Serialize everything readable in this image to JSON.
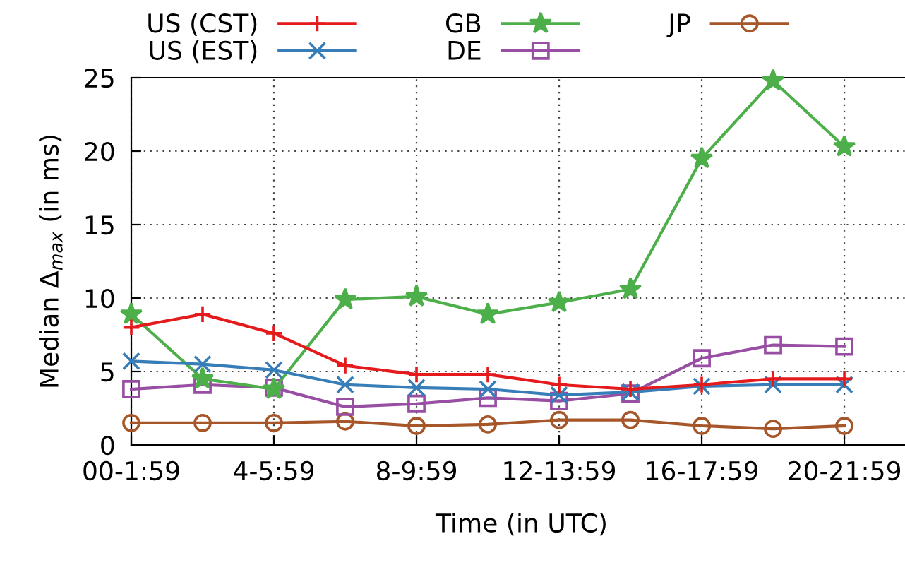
{
  "chart_data": {
    "type": "line",
    "xlabel": "Time (in UTC)",
    "ylabel": "Median Δ$_{max}$ (in ms)",
    "categories": [
      "00-1:59",
      null,
      "4-5:59",
      null,
      "8-9:59",
      null,
      "12-13:59",
      null,
      "16-17:59",
      null,
      "20-21:59"
    ],
    "ylim": [
      0,
      25
    ],
    "yticks": [
      0,
      5,
      10,
      15,
      20,
      25
    ],
    "grid": true,
    "legend": "top",
    "series": [
      {
        "name": "US (CST)",
        "color": "#e41a1c",
        "marker": "plus",
        "values": [
          8.0,
          8.9,
          7.6,
          5.4,
          4.8,
          4.8,
          4.1,
          3.8,
          4.1,
          4.5,
          4.5
        ]
      },
      {
        "name": "US (EST)",
        "color": "#377eb8",
        "marker": "cross",
        "values": [
          5.7,
          5.5,
          5.1,
          4.1,
          3.9,
          3.8,
          3.4,
          3.6,
          4.0,
          4.1,
          4.1
        ]
      },
      {
        "name": "GB",
        "color": "#4daf4a",
        "marker": "star",
        "values": [
          8.9,
          4.5,
          3.8,
          9.9,
          10.1,
          8.9,
          9.7,
          10.6,
          19.5,
          24.8,
          20.3
        ]
      },
      {
        "name": "DE",
        "color": "#984ea3",
        "marker": "square",
        "values": [
          3.8,
          4.1,
          3.9,
          2.6,
          2.8,
          3.2,
          3.0,
          3.5,
          5.9,
          6.8,
          6.7
        ]
      },
      {
        "name": "JP",
        "color": "#a65628",
        "marker": "circle",
        "values": [
          1.5,
          1.5,
          1.5,
          1.6,
          1.3,
          1.4,
          1.7,
          1.7,
          1.3,
          1.1,
          1.3
        ]
      }
    ]
  }
}
